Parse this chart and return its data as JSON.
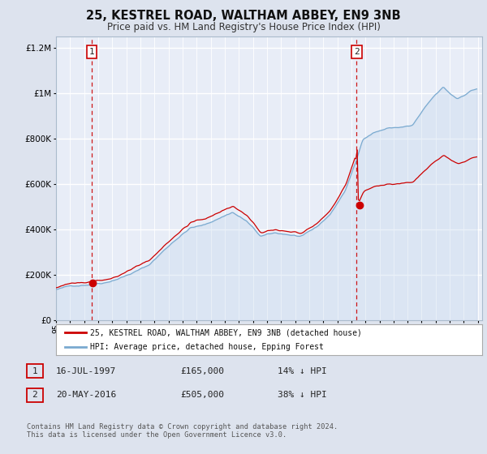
{
  "title": "25, KESTREL ROAD, WALTHAM ABBEY, EN9 3NB",
  "subtitle": "Price paid vs. HM Land Registry's House Price Index (HPI)",
  "legend_label_red": "25, KESTREL ROAD, WALTHAM ABBEY, EN9 3NB (detached house)",
  "legend_label_blue": "HPI: Average price, detached house, Epping Forest",
  "annotation1_date": "16-JUL-1997",
  "annotation1_price": "£165,000",
  "annotation1_hpi": "14% ↓ HPI",
  "annotation2_date": "20-MAY-2016",
  "annotation2_price": "£505,000",
  "annotation2_hpi": "38% ↓ HPI",
  "footer": "Contains HM Land Registry data © Crown copyright and database right 2024.\nThis data is licensed under the Open Government Licence v3.0.",
  "ylim": [
    0,
    1250000
  ],
  "yticks": [
    0,
    200000,
    400000,
    600000,
    800000,
    1000000,
    1200000
  ],
  "ytick_labels": [
    "£0",
    "£200K",
    "£400K",
    "£600K",
    "£800K",
    "£1M",
    "£1.2M"
  ],
  "background_color": "#dde3ee",
  "plot_bg_color": "#e8edf7",
  "grid_color": "#ffffff",
  "red_color": "#cc0000",
  "blue_color": "#7aaad0",
  "blue_fill": "#c5d8ed",
  "sale1_year": 1997.54,
  "sale1_price": 165000,
  "sale2_year": 2016.38,
  "sale2_price": 505000
}
